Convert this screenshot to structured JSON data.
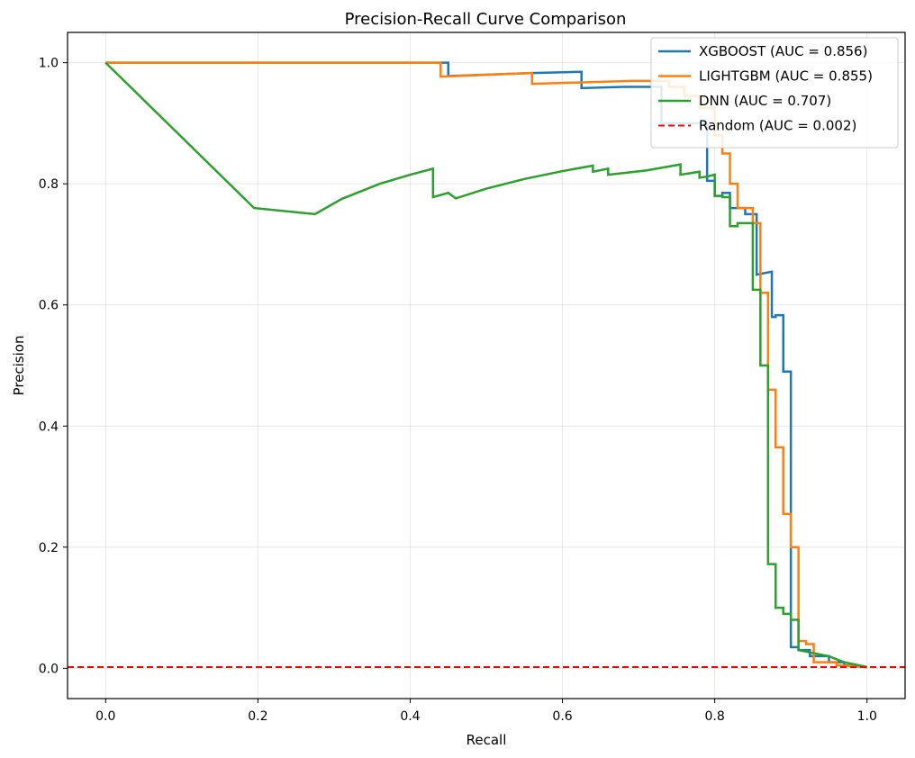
{
  "chart_data": {
    "type": "line",
    "title": "Precision-Recall Curve Comparison",
    "xlabel": "Recall",
    "ylabel": "Precision",
    "xlim": [
      -0.05,
      1.05
    ],
    "ylim": [
      -0.05,
      1.05
    ],
    "xticks": [
      0.0,
      0.2,
      0.4,
      0.6,
      0.8,
      1.0
    ],
    "yticks": [
      0.0,
      0.2,
      0.4,
      0.6,
      0.8,
      1.0
    ],
    "xtick_labels": [
      "0.0",
      "0.2",
      "0.4",
      "0.6",
      "0.8",
      "1.0"
    ],
    "ytick_labels": [
      "0.0",
      "0.2",
      "0.4",
      "0.6",
      "0.8",
      "1.0"
    ],
    "grid": true,
    "legend_position": "top-right",
    "series": [
      {
        "name": "XGBOOST (AUC = 0.856)",
        "color": "#1f77b4",
        "style": "solid",
        "step": true,
        "x": [
          0.0,
          0.45,
          0.45,
          0.56,
          0.625,
          0.625,
          0.68,
          0.73,
          0.73,
          0.79,
          0.79,
          0.8,
          0.8,
          0.81,
          0.81,
          0.82,
          0.82,
          0.84,
          0.84,
          0.855,
          0.855,
          0.875,
          0.875,
          0.88,
          0.88,
          0.89,
          0.89,
          0.9,
          0.9,
          0.91,
          0.91,
          0.925,
          0.925,
          0.95,
          0.95,
          0.97,
          0.97,
          1.0
        ],
        "y": [
          1.0,
          1.0,
          0.978,
          0.983,
          0.985,
          0.958,
          0.96,
          0.96,
          0.9,
          0.9,
          0.805,
          0.805,
          0.78,
          0.78,
          0.785,
          0.785,
          0.76,
          0.76,
          0.75,
          0.75,
          0.65,
          0.655,
          0.58,
          0.58,
          0.583,
          0.583,
          0.49,
          0.49,
          0.035,
          0.035,
          0.03,
          0.03,
          0.02,
          0.02,
          0.01,
          0.01,
          0.005,
          0.002
        ]
      },
      {
        "name": "LIGHTGBM (AUC = 0.855)",
        "color": "#ff7f0e",
        "style": "solid",
        "step": true,
        "x": [
          0.0,
          0.44,
          0.44,
          0.56,
          0.56,
          0.69,
          0.74,
          0.74,
          0.76,
          0.76,
          0.78,
          0.78,
          0.8,
          0.8,
          0.81,
          0.81,
          0.82,
          0.82,
          0.83,
          0.83,
          0.85,
          0.85,
          0.86,
          0.86,
          0.87,
          0.87,
          0.88,
          0.88,
          0.89,
          0.89,
          0.9,
          0.9,
          0.91,
          0.91,
          0.92,
          0.92,
          0.93,
          0.93,
          0.96,
          0.96,
          1.0
        ],
        "y": [
          1.0,
          1.0,
          0.977,
          0.983,
          0.965,
          0.97,
          0.97,
          0.96,
          0.96,
          0.945,
          0.945,
          0.925,
          0.925,
          0.88,
          0.88,
          0.85,
          0.85,
          0.8,
          0.8,
          0.76,
          0.76,
          0.735,
          0.735,
          0.62,
          0.62,
          0.46,
          0.46,
          0.365,
          0.365,
          0.255,
          0.255,
          0.2,
          0.2,
          0.045,
          0.045,
          0.04,
          0.04,
          0.01,
          0.01,
          0.005,
          0.002
        ]
      },
      {
        "name": "DNN (AUC = 0.707)",
        "color": "#2ca02c",
        "style": "solid",
        "step": false,
        "x": [
          0.0,
          0.195,
          0.275,
          0.31,
          0.36,
          0.4,
          0.43,
          0.43,
          0.45,
          0.46,
          0.5,
          0.55,
          0.6,
          0.64,
          0.64,
          0.66,
          0.66,
          0.71,
          0.755,
          0.755,
          0.78,
          0.78,
          0.79,
          0.8,
          0.8,
          0.81,
          0.81,
          0.82,
          0.82,
          0.83,
          0.83,
          0.85,
          0.85,
          0.86,
          0.86,
          0.87,
          0.87,
          0.88,
          0.88,
          0.89,
          0.89,
          0.9,
          0.9,
          0.91,
          0.91,
          0.95,
          0.97,
          1.0
        ],
        "y": [
          1.0,
          0.76,
          0.75,
          0.775,
          0.8,
          0.815,
          0.825,
          0.778,
          0.785,
          0.776,
          0.792,
          0.808,
          0.821,
          0.83,
          0.82,
          0.825,
          0.815,
          0.822,
          0.832,
          0.815,
          0.82,
          0.81,
          0.812,
          0.815,
          0.78,
          0.78,
          0.778,
          0.778,
          0.73,
          0.73,
          0.735,
          0.735,
          0.625,
          0.625,
          0.5,
          0.5,
          0.172,
          0.172,
          0.1,
          0.1,
          0.09,
          0.09,
          0.08,
          0.08,
          0.03,
          0.02,
          0.01,
          0.002
        ]
      },
      {
        "name": "Random (AUC = 0.002)",
        "color": "#ff0000",
        "style": "dashed",
        "step": false,
        "x": [
          -0.05,
          1.05
        ],
        "y": [
          0.002,
          0.002
        ]
      }
    ]
  }
}
